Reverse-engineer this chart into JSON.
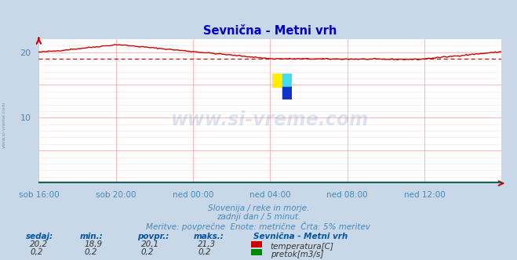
{
  "title": "Sevnična - Metni vrh",
  "bg_color": "#c8d8e8",
  "plot_bg_color": "#ffffff",
  "grid_color_major": "#ffaaaa",
  "grid_color_minor": "#ffdddd",
  "x_labels": [
    "sob 16:00",
    "sob 20:00",
    "ned 00:00",
    "ned 04:00",
    "ned 08:00",
    "ned 12:00"
  ],
  "x_ticks_norm": [
    0.0,
    0.1667,
    0.3333,
    0.5,
    0.6667,
    0.8333
  ],
  "y_min": 0,
  "y_max": 22,
  "y_ticks": [
    10,
    20
  ],
  "temp_color": "#cc0000",
  "flow_color": "#008800",
  "avg_line_color": "#cc0000",
  "avg_line_value": 19.0,
  "subtitle1": "Slovenija / reke in morje.",
  "subtitle2": "zadnji dan / 5 minut.",
  "subtitle3": "Meritve: povprečne  Enote: metrične  Črta: 5% meritev",
  "legend_title": "Sevnična - Metni vrh",
  "stat_headers": [
    "sedaj:",
    "min.:",
    "povpr.:",
    "maks.:"
  ],
  "temp_stats": [
    "20,2",
    "18,9",
    "20,1",
    "21,3"
  ],
  "flow_stats": [
    "0,2",
    "0,2",
    "0,2",
    "0,2"
  ],
  "temp_label": "temperatura[C]",
  "flow_label": "pretok[m3/s]",
  "watermark": "www.si-vreme.com",
  "side_text": "www.si-vreme.com",
  "title_color": "#0000cc",
  "label_color": "#4488bb",
  "stat_color": "#0055aa"
}
